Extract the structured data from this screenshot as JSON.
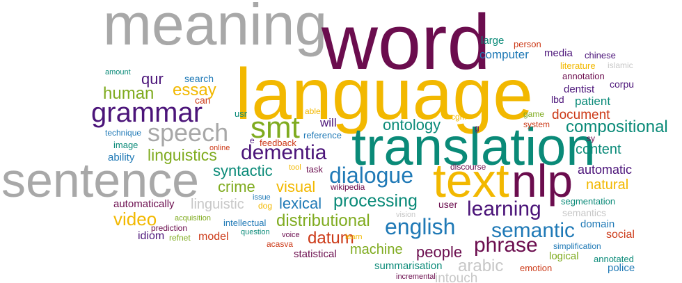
{
  "palette": {
    "gray": "#a8a8a8",
    "purple": "#6b0d4e",
    "yellow": "#f2b800",
    "teal": "#0a8a78",
    "green": "#7fab1f",
    "blue": "#1f79b6",
    "indigo": "#4b1479",
    "orange": "#e05a0f",
    "red": "#cc3a18",
    "lightgray": "#c7c7c7"
  },
  "words": [
    {
      "text": "meaning",
      "color": "gray"
    },
    {
      "text": "word",
      "color": "purple"
    },
    {
      "text": "language",
      "color": "yellow"
    },
    {
      "text": "translation",
      "color": "teal"
    },
    {
      "text": "sentence",
      "color": "gray"
    },
    {
      "text": "text",
      "color": "yellow"
    },
    {
      "text": "nlp",
      "color": "purple"
    },
    {
      "text": "grammar",
      "color": "indigo"
    },
    {
      "text": "speech",
      "color": "gray"
    },
    {
      "text": "smt",
      "color": "green"
    },
    {
      "text": "dementia",
      "color": "indigo"
    },
    {
      "text": "dialogue",
      "color": "blue"
    },
    {
      "text": "learning",
      "color": "indigo"
    },
    {
      "text": "english",
      "color": "blue"
    },
    {
      "text": "semantic",
      "color": "blue"
    },
    {
      "text": "phrase",
      "color": "purple"
    },
    {
      "text": "processing",
      "color": "teal"
    },
    {
      "text": "distributional",
      "color": "green"
    },
    {
      "text": "compositional",
      "color": "teal"
    },
    {
      "text": "ontology",
      "color": "teal"
    },
    {
      "text": "human",
      "color": "green"
    },
    {
      "text": "essay",
      "color": "yellow"
    },
    {
      "text": "qur",
      "color": "indigo"
    },
    {
      "text": "linguistics",
      "color": "green"
    },
    {
      "text": "syntactic",
      "color": "teal"
    },
    {
      "text": "crime",
      "color": "green"
    },
    {
      "text": "visual",
      "color": "yellow"
    },
    {
      "text": "lexical",
      "color": "blue"
    },
    {
      "text": "video",
      "color": "yellow"
    },
    {
      "text": "datum",
      "color": "red"
    },
    {
      "text": "people",
      "color": "purple"
    },
    {
      "text": "machine",
      "color": "green"
    },
    {
      "text": "arabic",
      "color": "lightgray"
    },
    {
      "text": "intouch",
      "color": "lightgray"
    },
    {
      "text": "linguistic",
      "color": "lightgray"
    },
    {
      "text": "document",
      "color": "red"
    },
    {
      "text": "content",
      "color": "teal"
    },
    {
      "text": "automatic",
      "color": "indigo"
    },
    {
      "text": "natural",
      "color": "yellow"
    },
    {
      "text": "computer",
      "color": "blue"
    },
    {
      "text": "media",
      "color": "indigo"
    },
    {
      "text": "large",
      "color": "teal"
    },
    {
      "text": "person",
      "color": "red"
    },
    {
      "text": "chinese",
      "color": "indigo"
    },
    {
      "text": "literature",
      "color": "yellow"
    },
    {
      "text": "islamic",
      "color": "lightgray"
    },
    {
      "text": "annotation",
      "color": "purple"
    },
    {
      "text": "corpu",
      "color": "indigo"
    },
    {
      "text": "dentist",
      "color": "indigo"
    },
    {
      "text": "lbd",
      "color": "indigo"
    },
    {
      "text": "patient",
      "color": "teal"
    },
    {
      "text": "game",
      "color": "green"
    },
    {
      "text": "system",
      "color": "red"
    },
    {
      "text": "sy",
      "color": "purple"
    },
    {
      "text": "g",
      "color": "purple"
    },
    {
      "text": "cgm",
      "color": "yellow"
    },
    {
      "text": "will",
      "color": "indigo"
    },
    {
      "text": "able",
      "color": "yellow"
    },
    {
      "text": "feedback",
      "color": "red"
    },
    {
      "text": "reference",
      "color": "blue"
    },
    {
      "text": "e",
      "color": "indigo"
    },
    {
      "text": "usr",
      "color": "teal"
    },
    {
      "text": "amount",
      "color": "teal"
    },
    {
      "text": "search",
      "color": "blue"
    },
    {
      "text": "can",
      "color": "red"
    },
    {
      "text": "technique",
      "color": "blue"
    },
    {
      "text": "image",
      "color": "teal"
    },
    {
      "text": "ability",
      "color": "blue"
    },
    {
      "text": "online",
      "color": "red"
    },
    {
      "text": "tool",
      "color": "yellow"
    },
    {
      "text": "task",
      "color": "purple"
    },
    {
      "text": "discourse",
      "color": "purple"
    },
    {
      "text": "wikipedia",
      "color": "purple"
    },
    {
      "text": "issue",
      "color": "blue"
    },
    {
      "text": "dog",
      "color": "yellow"
    },
    {
      "text": "automatically",
      "color": "purple"
    },
    {
      "text": "user",
      "color": "purple"
    },
    {
      "text": "vision",
      "color": "lightgray"
    },
    {
      "text": "segmentation",
      "color": "teal"
    },
    {
      "text": "semantics",
      "color": "lightgray"
    },
    {
      "text": "domain",
      "color": "blue"
    },
    {
      "text": "social",
      "color": "red"
    },
    {
      "text": "acquisition",
      "color": "green"
    },
    {
      "text": "intellectual",
      "color": "blue"
    },
    {
      "text": "prediction",
      "color": "purple"
    },
    {
      "text": "idiom",
      "color": "indigo"
    },
    {
      "text": "refnet",
      "color": "green"
    },
    {
      "text": "model",
      "color": "red"
    },
    {
      "text": "question",
      "color": "teal"
    },
    {
      "text": "voice",
      "color": "purple"
    },
    {
      "text": "learn",
      "color": "yellow"
    },
    {
      "text": "acasva",
      "color": "red"
    },
    {
      "text": "statistical",
      "color": "purple"
    },
    {
      "text": "summarisation",
      "color": "teal"
    },
    {
      "text": "incremental",
      "color": "purple"
    },
    {
      "text": "emotion",
      "color": "red"
    },
    {
      "text": "logical",
      "color": "green"
    },
    {
      "text": "annotated",
      "color": "teal"
    },
    {
      "text": "police",
      "color": "blue"
    },
    {
      "text": "simplification",
      "color": "blue"
    }
  ]
}
